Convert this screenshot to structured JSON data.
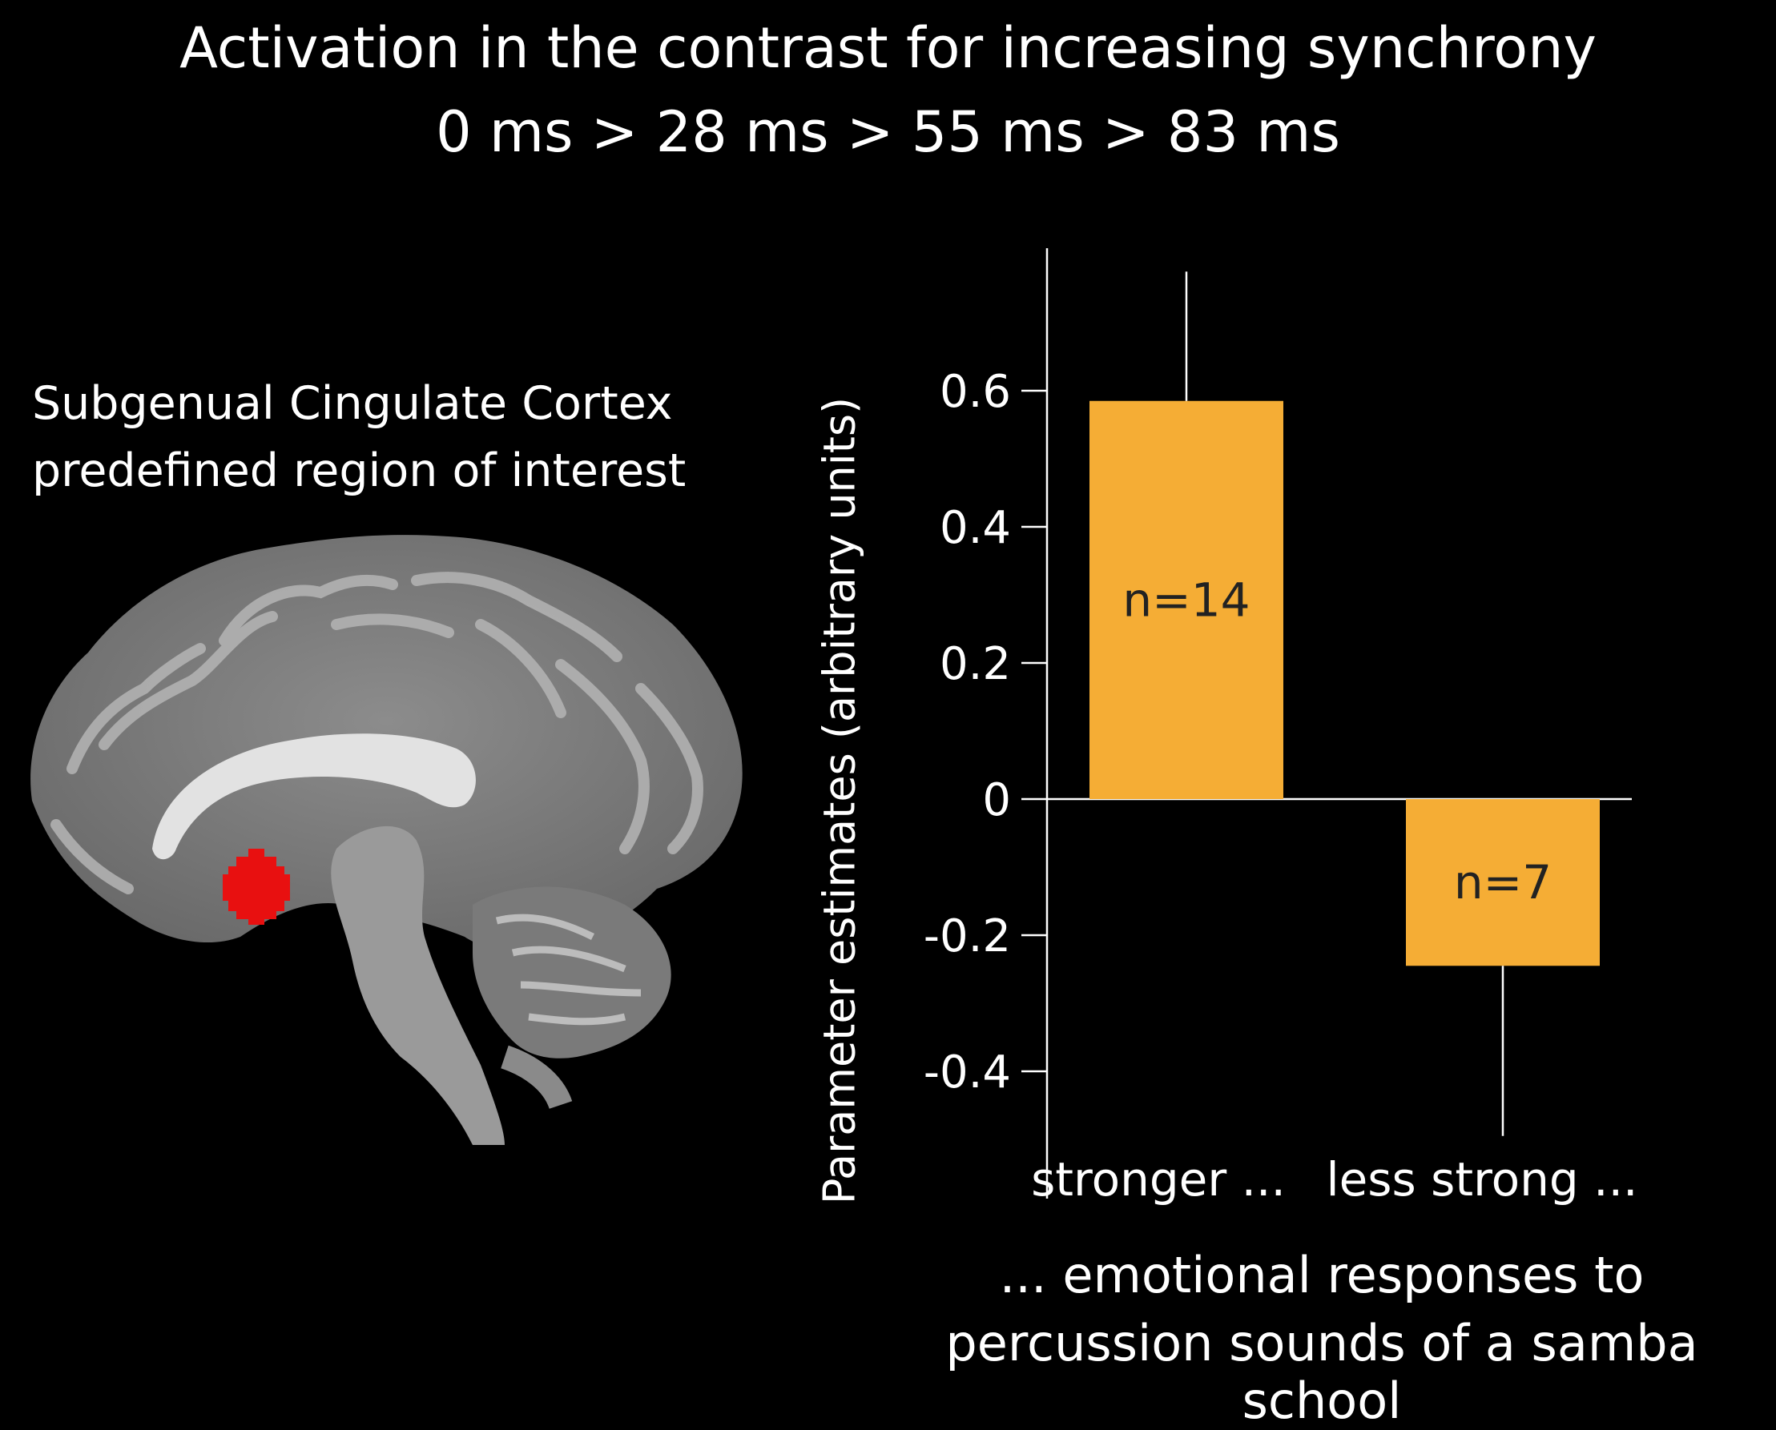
{
  "title": {
    "line1": "Activation in the contrast for increasing synchrony",
    "line2": "0 ms > 28 ms > 55 ms > 83 ms"
  },
  "brain": {
    "label_line1": "Subgenual Cingulate Cortex",
    "label_line2": "predefined region of interest",
    "roi_color": "#e81010"
  },
  "chart_data": {
    "type": "bar",
    "categories": [
      "stronger ...",
      "less strong ..."
    ],
    "values": [
      0.585,
      -0.245
    ],
    "error_bar_end": [
      0.775,
      -0.495
    ],
    "bar_labels": [
      "n=14",
      "n=7"
    ],
    "bar_color": "#f5ad35",
    "ylabel": "Parameter estimates (arbitrary units)",
    "xlabel_line1": "... emotional responses to",
    "xlabel_line2": "percussion sounds of a  samba school",
    "yticks": [
      0.6,
      0.4,
      0.2,
      0,
      -0.2,
      -0.4
    ],
    "ytick_labels": [
      "0.6",
      "0.4",
      "0.2",
      "0",
      "-0.2",
      "-0.4"
    ],
    "ylim": [
      -0.5,
      0.8
    ],
    "grid": false,
    "legend": "none"
  }
}
